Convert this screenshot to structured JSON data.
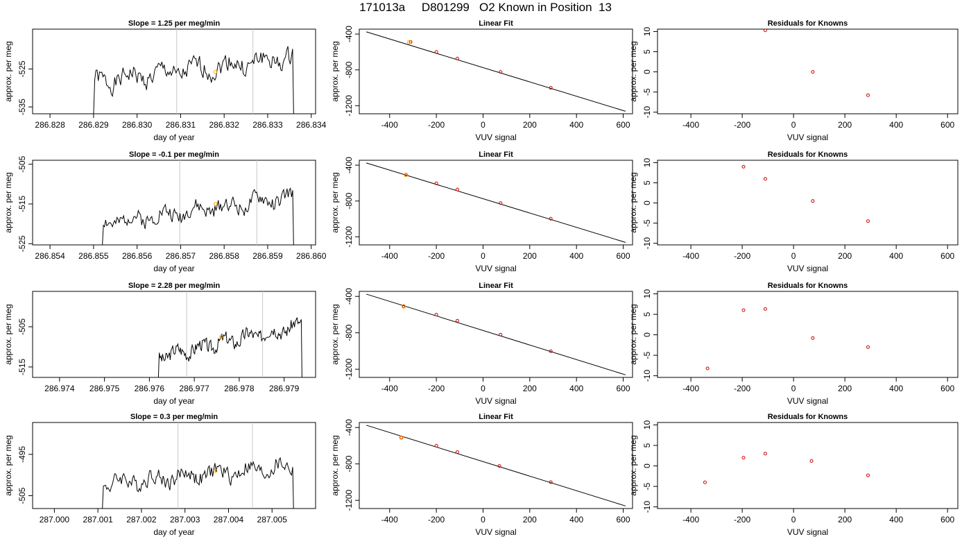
{
  "page": {
    "title": "171013a     D801299   O2 Known in Position  13"
  },
  "colors": {
    "line": "#000000",
    "marker": "#FFA500",
    "vline": "#C8C8C8",
    "residual": "#CC0000"
  },
  "chart_data": [
    {
      "type": "line",
      "row": 1,
      "title": "Slope =  1.25  per meg/min",
      "xlabel": "day of year",
      "ylabel": "approx. per meg",
      "xlim": [
        286.8276,
        286.8341
      ],
      "ylim": [
        -536.8,
        -514.5
      ],
      "xticks": [
        286.828,
        286.829,
        286.83,
        286.831,
        286.832,
        286.833,
        286.834
      ],
      "xtick_labels": [
        "286.828",
        "286.829",
        "286.830",
        "286.831",
        "286.832",
        "286.833",
        "286.834"
      ],
      "yticks": [
        -535,
        -525
      ],
      "ytick_labels": [
        "-535",
        "-525"
      ],
      "vlines": [
        286.83091,
        286.83266
      ],
      "trace": {
        "x_start": 286.829,
        "x_end": 286.8336,
        "begin": -537,
        "base": -528.5,
        "trend": 6.5,
        "amp": 2.2,
        "seed": 1
      },
      "marker": {
        "x": 286.8318,
        "y": -525.8
      }
    },
    {
      "type": "line",
      "row": 2,
      "title": "Slope =  -0.1  per meg/min",
      "xlabel": "day of year",
      "ylabel": "approx. per meg",
      "xlim": [
        286.8536,
        286.8601
      ],
      "ylim": [
        -525.3,
        -504.0
      ],
      "xticks": [
        286.854,
        286.855,
        286.856,
        286.857,
        286.858,
        286.859,
        286.86
      ],
      "xtick_labels": [
        "286.854",
        "286.855",
        "286.856",
        "286.857",
        "286.858",
        "286.859",
        "286.860"
      ],
      "yticks": [
        -525,
        -515,
        -505
      ],
      "ytick_labels": [
        "-525",
        "-515",
        "-505"
      ],
      "vlines": [
        286.85698,
        286.85875
      ],
      "trace": {
        "x_start": 286.8552,
        "x_end": 286.8596,
        "begin": -526,
        "base": -519.8,
        "trend": 6.5,
        "amp": 1.8,
        "seed": 2
      },
      "marker": {
        "x": 286.8578,
        "y": -515.0
      }
    },
    {
      "type": "line",
      "row": 3,
      "title": "Slope =  2.28  per meg/min",
      "xlabel": "day of year",
      "ylabel": "approx. per meg",
      "xlim": [
        286.9734,
        286.9797
      ],
      "ylim": [
        -517.6,
        -496.2
      ],
      "xticks": [
        286.974,
        286.975,
        286.976,
        286.977,
        286.978,
        286.979
      ],
      "xtick_labels": [
        "286.974",
        "286.975",
        "286.976",
        "286.977",
        "286.978",
        "286.979"
      ],
      "yticks": [
        -515,
        -505
      ],
      "ytick_labels": [
        "-515",
        "-505"
      ],
      "vlines": [
        286.97683,
        286.97852
      ],
      "trace": {
        "x_start": 286.9762,
        "x_end": 286.9794,
        "begin": -518,
        "base": -512.5,
        "trend": 8.0,
        "amp": 1.6,
        "seed": 3
      },
      "marker": {
        "x": 286.9776,
        "y": -507.5
      }
    },
    {
      "type": "line",
      "row": 4,
      "title": "Slope =  0.3  per meg/min",
      "xlabel": "day of year",
      "ylabel": "approx. per meg",
      "xlim": [
        286.9995,
        287.006
      ],
      "ylim": [
        -508.1,
        -487.3
      ],
      "xticks": [
        287.0,
        287.001,
        287.002,
        287.003,
        287.004,
        287.005
      ],
      "xtick_labels": [
        "287.000",
        "287.001",
        "287.002",
        "287.003",
        "287.004",
        "287.005"
      ],
      "yticks": [
        -505,
        -495
      ],
      "ytick_labels": [
        "-505",
        "-495"
      ],
      "vlines": [
        287.00284,
        287.00455
      ],
      "trace": {
        "x_start": 287.0011,
        "x_end": 287.0055,
        "begin": -509,
        "base": -502.0,
        "trend": 4.0,
        "amp": 1.8,
        "seed": 4
      },
      "marker": {
        "x": 287.0037,
        "y": -499.0
      }
    },
    {
      "type": "scatter",
      "row": 1,
      "title": "Linear Fit",
      "xlabel": "VUV signal",
      "ylabel": "approx. per meg",
      "xlim": [
        -530,
        640
      ],
      "ylim": [
        -1290,
        -345
      ],
      "xticks": [
        -400,
        -200,
        0,
        200,
        400,
        600
      ],
      "xtick_labels": [
        "-400",
        "-200",
        "0",
        "200",
        "400",
        "600"
      ],
      "yticks": [
        -1200,
        -800,
        -400
      ],
      "ytick_labels": [
        "-1200",
        "-800",
        "-400"
      ],
      "fit_line": {
        "x": [
          -500,
          610
        ],
        "y": [
          -375,
          -1262
        ]
      },
      "points": {
        "x": [
          -310,
          -200,
          -110,
          75,
          290
        ],
        "y": [
          -488,
          -600,
          -673,
          -823,
          -1000
        ]
      },
      "marker": {
        "x": -316,
        "y": -490
      }
    },
    {
      "type": "scatter",
      "row": 2,
      "title": "Linear Fit",
      "xlabel": "VUV signal",
      "ylabel": "approx. per meg",
      "xlim": [
        -530,
        640
      ],
      "ylim": [
        -1290,
        -345
      ],
      "xticks": [
        -400,
        -200,
        0,
        200,
        400,
        600
      ],
      "xtick_labels": [
        "-400",
        "-200",
        "0",
        "200",
        "400",
        "600"
      ],
      "yticks": [
        -1200,
        -800,
        -400
      ],
      "ytick_labels": [
        "-1200",
        "-800",
        "-400"
      ],
      "fit_line": {
        "x": [
          -500,
          610
        ],
        "y": [
          -375,
          -1262
        ]
      },
      "points": {
        "x": [
          -330,
          -200,
          -110,
          75,
          290
        ],
        "y": [
          -508,
          -603,
          -671,
          -823,
          -998
        ]
      },
      "marker": {
        "x": -330,
        "y": -508
      }
    },
    {
      "type": "scatter",
      "row": 3,
      "title": "Linear Fit",
      "xlabel": "VUV signal",
      "ylabel": "approx. per meg",
      "xlim": [
        -530,
        640
      ],
      "ylim": [
        -1290,
        -345
      ],
      "xticks": [
        -400,
        -200,
        0,
        200,
        400,
        600
      ],
      "xtick_labels": [
        "-400",
        "-200",
        "0",
        "200",
        "400",
        "600"
      ],
      "yticks": [
        -1200,
        -800,
        -400
      ],
      "ytick_labels": [
        "-1200",
        "-800",
        "-400"
      ],
      "fit_line": {
        "x": [
          -500,
          610
        ],
        "y": [
          -375,
          -1262
        ]
      },
      "points": {
        "x": [
          -340,
          -200,
          -110,
          75,
          290
        ],
        "y": [
          -510,
          -600,
          -667,
          -820,
          -1002
        ]
      },
      "marker": {
        "x": -340,
        "y": -510
      }
    },
    {
      "type": "scatter",
      "row": 4,
      "title": "Linear Fit",
      "xlabel": "VUV signal",
      "ylabel": "approx. per meg",
      "xlim": [
        -530,
        640
      ],
      "ylim": [
        -1290,
        -345
      ],
      "xticks": [
        -400,
        -200,
        0,
        200,
        400,
        600
      ],
      "xtick_labels": [
        "-400",
        "-200",
        "0",
        "200",
        "400",
        "600"
      ],
      "yticks": [
        -1200,
        -800,
        -400
      ],
      "ytick_labels": [
        "-1200",
        "-800",
        "-400"
      ],
      "fit_line": {
        "x": [
          -500,
          610
        ],
        "y": [
          -375,
          -1262
        ]
      },
      "points": {
        "x": [
          -350,
          -200,
          -110,
          70,
          290
        ],
        "y": [
          -510,
          -600,
          -670,
          -822,
          -1000
        ]
      },
      "marker": {
        "x": -350,
        "y": -510
      }
    },
    {
      "type": "scatter",
      "row": 1,
      "title": "Residuals for Knowns",
      "xlabel": "VUV signal",
      "ylabel": "approx. per meg",
      "xlim": [
        -530,
        640
      ],
      "ylim": [
        -10.4,
        10.6
      ],
      "xticks": [
        -400,
        -200,
        0,
        200,
        400,
        600
      ],
      "xtick_labels": [
        "-400",
        "-200",
        "0",
        "200",
        "400",
        "600"
      ],
      "yticks": [
        -10,
        -5,
        0,
        5,
        10
      ],
      "ytick_labels": [
        "-10",
        "-5",
        "0",
        "5",
        "10"
      ],
      "points": {
        "x": [
          -110,
          75,
          290
        ],
        "y": [
          10.3,
          0.0,
          -5.8
        ]
      }
    },
    {
      "type": "scatter",
      "row": 2,
      "title": "Residuals for Knowns",
      "xlabel": "VUV signal",
      "ylabel": "approx. per meg",
      "xlim": [
        -530,
        640
      ],
      "ylim": [
        -10.4,
        10.6
      ],
      "xticks": [
        -400,
        -200,
        0,
        200,
        400,
        600
      ],
      "xtick_labels": [
        "-400",
        "-200",
        "0",
        "200",
        "400",
        "600"
      ],
      "yticks": [
        -10,
        -5,
        0,
        5,
        10
      ],
      "ytick_labels": [
        "-10",
        "-5",
        "0",
        "5",
        "10"
      ],
      "points": {
        "x": [
          -195,
          -110,
          75,
          290
        ],
        "y": [
          9.0,
          6.0,
          0.5,
          -4.5
        ]
      }
    },
    {
      "type": "scatter",
      "row": 3,
      "title": "Residuals for Knowns",
      "xlabel": "VUV signal",
      "ylabel": "approx. per meg",
      "xlim": [
        -530,
        640
      ],
      "ylim": [
        -10.4,
        10.6
      ],
      "xticks": [
        -400,
        -200,
        0,
        200,
        400,
        600
      ],
      "xtick_labels": [
        "-400",
        "-200",
        "0",
        "200",
        "400",
        "600"
      ],
      "yticks": [
        -10,
        -5,
        0,
        5,
        10
      ],
      "ytick_labels": [
        "-10",
        "-5",
        "0",
        "5",
        "10"
      ],
      "points": {
        "x": [
          -335,
          -195,
          -110,
          75,
          290
        ],
        "y": [
          -8.2,
          6.0,
          6.3,
          -0.8,
          -3.0
        ]
      }
    },
    {
      "type": "scatter",
      "row": 4,
      "title": "Residuals for Knowns",
      "xlabel": "VUV signal",
      "ylabel": "approx. per meg",
      "xlim": [
        -530,
        640
      ],
      "ylim": [
        -10.4,
        10.6
      ],
      "xticks": [
        -400,
        -200,
        0,
        200,
        400,
        600
      ],
      "xtick_labels": [
        "-400",
        "-200",
        "0",
        "200",
        "400",
        "600"
      ],
      "yticks": [
        -10,
        -5,
        0,
        5,
        10
      ],
      "ytick_labels": [
        "-10",
        "-5",
        "0",
        "5",
        "10"
      ],
      "points": {
        "x": [
          -345,
          -195,
          -110,
          70,
          290
        ],
        "y": [
          -4.0,
          2.0,
          3.0,
          1.2,
          -2.3
        ]
      }
    }
  ]
}
